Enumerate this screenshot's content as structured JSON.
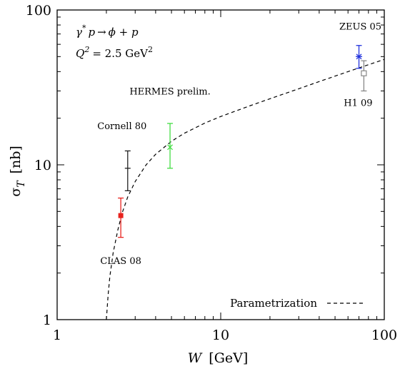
{
  "chart_data": {
    "type": "scatter",
    "x_scale": "log",
    "y_scale": "log",
    "xlim": [
      1,
      100
    ],
    "ylim": [
      1,
      100
    ],
    "x_ticks": [
      "1",
      "10",
      "100"
    ],
    "y_ticks": [
      "1",
      "10",
      "100"
    ],
    "xlabel": {
      "symbol": "W",
      "unit": "[GeV]"
    },
    "ylabel": {
      "symbol": "σ",
      "subscript": "T",
      "unit": "[nb]"
    },
    "process": {
      "lhs": "γ",
      "lhs_sup": "*",
      "lhs_p": "p",
      "arrow": "→",
      "rhs": "ϕ + p"
    },
    "q2": {
      "label": "Q",
      "sup": "2",
      "value": "= 2.5 GeV",
      "unit_sup": "2"
    },
    "legend": {
      "label": "Parametrization",
      "position": "bottom-right",
      "style": "dashed"
    },
    "series": [
      {
        "name": "CLAS 08",
        "color": "#e8231e",
        "marker": "filled-square",
        "points": [
          {
            "x": 2.45,
            "y": 4.7,
            "ylow": 3.4,
            "yhigh": 6.1
          }
        ]
      },
      {
        "name": "Cornell 80",
        "color": "#222222",
        "marker": "plus",
        "points": [
          {
            "x": 2.7,
            "y": 9.5,
            "ylow": 6.8,
            "yhigh": 12.3
          }
        ]
      },
      {
        "name": "HERMES prelim.",
        "color": "#44dd44",
        "marker": "cross",
        "points": [
          {
            "x": 4.9,
            "y": 13.0,
            "ylow": 9.5,
            "yhigh": 18.5
          }
        ]
      },
      {
        "name": "ZEUS 05",
        "color": "#2233dd",
        "marker": "star",
        "points": [
          {
            "x": 70,
            "y": 50,
            "ylow": 42,
            "yhigh": 59
          }
        ]
      },
      {
        "name": "H1 09",
        "color": "#888888",
        "marker": "open-square",
        "points": [
          {
            "x": 75,
            "y": 39,
            "ylow": 30,
            "yhigh": 47
          }
        ]
      }
    ],
    "parametrization": {
      "label": "Parametrization",
      "x": [
        2.0,
        2.05,
        2.1,
        2.2,
        2.35,
        2.5,
        2.7,
        3.0,
        3.5,
        4.0,
        5.0,
        6.0,
        8.0,
        10,
        15,
        20,
        30,
        40,
        60,
        80,
        100
      ],
      "y": [
        1.0,
        1.45,
        1.9,
        2.7,
        3.8,
        4.9,
        6.2,
        7.8,
        10.0,
        11.7,
        14.2,
        16.0,
        18.6,
        20.5,
        24.0,
        26.7,
        31.0,
        34.5,
        40.0,
        44.3,
        48.0
      ]
    },
    "annotations": [
      {
        "text": "ZEUS 05",
        "x": 70,
        "y": 50
      },
      {
        "text": "H1 09",
        "x": 75,
        "y": 39
      },
      {
        "text": "HERMES prelim.",
        "x": 4.9,
        "y": 13.0
      },
      {
        "text": "Cornell 80",
        "x": 2.7,
        "y": 9.5
      },
      {
        "text": "CLAS 08",
        "x": 2.45,
        "y": 4.7
      }
    ]
  }
}
